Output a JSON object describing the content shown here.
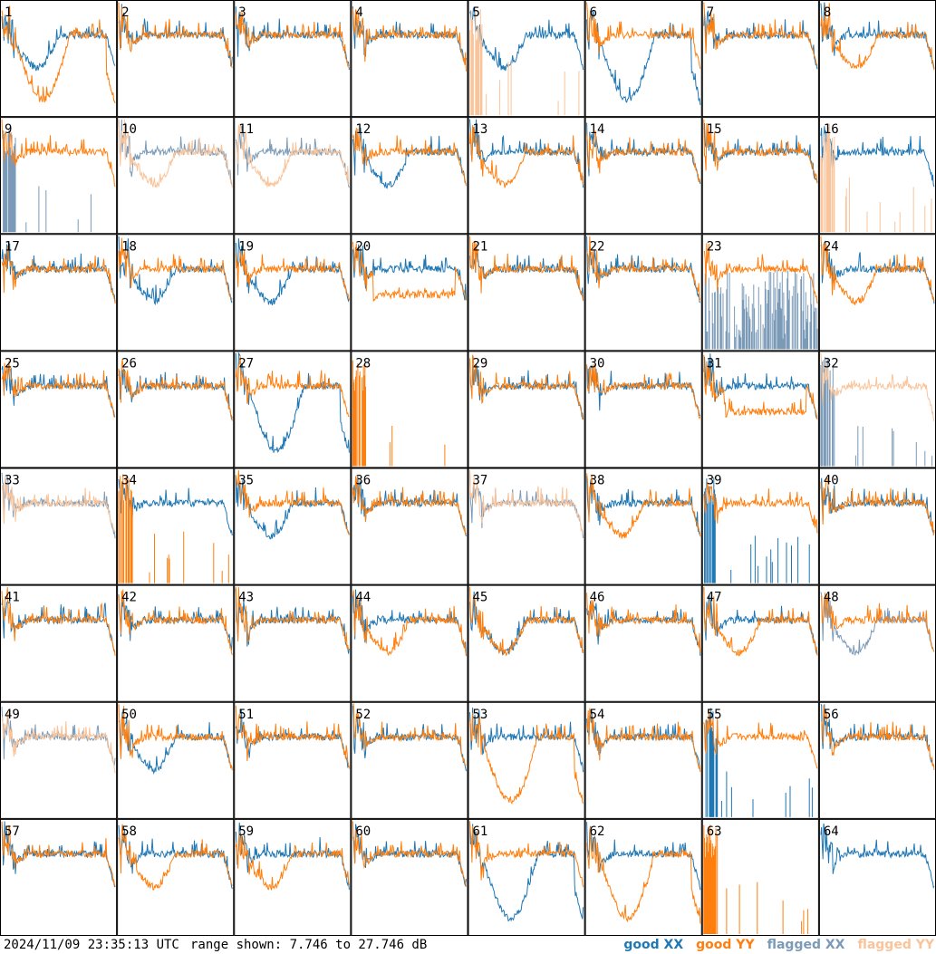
{
  "chart_data": {
    "type": "line",
    "layout": "grid of small multiples",
    "grid": {
      "rows": 8,
      "cols": 8
    },
    "tile_labels": [
      "1",
      "2",
      "3",
      "4",
      "5",
      "6",
      "7",
      "8",
      "9",
      "10",
      "11",
      "12",
      "13",
      "14",
      "15",
      "16",
      "17",
      "18",
      "19",
      "20",
      "21",
      "22",
      "23",
      "24",
      "25",
      "26",
      "27",
      "28",
      "29",
      "30",
      "31",
      "32",
      "33",
      "34",
      "35",
      "36",
      "37",
      "38",
      "39",
      "40",
      "41",
      "42",
      "43",
      "44",
      "45",
      "46",
      "47",
      "48",
      "49",
      "50",
      "51",
      "52",
      "53",
      "54",
      "55",
      "56",
      "57",
      "58",
      "59",
      "60",
      "61",
      "62",
      "63",
      "64"
    ],
    "y_range_db": [
      7.746,
      27.746
    ],
    "series_legend": [
      {
        "key": "good_xx",
        "name": "good XX",
        "color": "#1f77b4"
      },
      {
        "key": "good_yy",
        "name": "good YY",
        "color": "#ff7f0e"
      },
      {
        "key": "flagged_xx",
        "name": "flagged XX",
        "color": "#7a9ab8"
      },
      {
        "key": "flagged_yy",
        "name": "flagged YY",
        "color": "#f9c49a"
      }
    ],
    "tiles": {
      "1": {
        "xx": "dip",
        "yy": "deep",
        "xf": 0,
        "yf": 0
      },
      "5": {
        "xx": "dip",
        "yy": "spikes",
        "xf": 0,
        "yf": 1
      },
      "6": {
        "xx": "deep",
        "yy": "normal",
        "xf": 0,
        "yf": 0
      },
      "8": {
        "xx": "normal",
        "yy": "dip",
        "xf": 0,
        "yf": 0
      },
      "9": {
        "xx": "spikes",
        "yy": "normal",
        "xf": 1,
        "yf": 0
      },
      "10": {
        "xx": "normal",
        "yy": "dip",
        "xf": 1,
        "yf": 1
      },
      "11": {
        "xx": "normal",
        "yy": "dip",
        "xf": 1,
        "yf": 1
      },
      "12": {
        "xx": "dip",
        "yy": "normal",
        "xf": 0,
        "yf": 0
      },
      "13": {
        "xx": "normal",
        "yy": "dip",
        "xf": 0,
        "yf": 0
      },
      "16": {
        "xx": "normal",
        "yy": "spikes",
        "xf": 0,
        "yf": 1
      },
      "18": {
        "xx": "dip",
        "yy": "normal",
        "xf": 0,
        "yf": 0
      },
      "19": {
        "xx": "dip",
        "yy": "normal",
        "xf": 0,
        "yf": 0
      },
      "20": {
        "xx": "normal",
        "yy": "low",
        "xf": 0,
        "yf": 0
      },
      "23": {
        "xx": "noise",
        "yy": "normal",
        "xf": 1,
        "yf": 0
      },
      "24": {
        "xx": "normal",
        "yy": "dip",
        "xf": 0,
        "yf": 0
      },
      "27": {
        "xx": "deep",
        "yy": "normal",
        "xf": 0,
        "yf": 0
      },
      "28": {
        "xx": "none",
        "yy": "spikes",
        "xf": 0,
        "yf": 0
      },
      "31": {
        "xx": "normal",
        "yy": "low",
        "xf": 0,
        "yf": 0
      },
      "32": {
        "xx": "spikes",
        "yy": "normal",
        "xf": 1,
        "yf": 1
      },
      "33": {
        "xx": "normal",
        "yy": "normal",
        "xf": 1,
        "yf": 1
      },
      "34": {
        "xx": "normal",
        "yy": "spikes",
        "xf": 0,
        "yf": 0
      },
      "35": {
        "xx": "dip",
        "yy": "normal",
        "xf": 0,
        "yf": 0
      },
      "37": {
        "xx": "normal",
        "yy": "normal",
        "xf": 1,
        "yf": 1
      },
      "38": {
        "xx": "normal",
        "yy": "dip",
        "xf": 0,
        "yf": 0
      },
      "39": {
        "xx": "spikes",
        "yy": "normal",
        "xf": 0,
        "yf": 0
      },
      "44": {
        "xx": "normal",
        "yy": "dip",
        "xf": 0,
        "yf": 0
      },
      "45": {
        "xx": "dip",
        "yy": "dip",
        "xf": 0,
        "yf": 0
      },
      "47": {
        "xx": "normal",
        "yy": "dip",
        "xf": 0,
        "yf": 0
      },
      "48": {
        "xx": "dip",
        "yy": "normal",
        "xf": 1,
        "yf": 0
      },
      "49": {
        "xx": "normal",
        "yy": "normal",
        "xf": 1,
        "yf": 1
      },
      "50": {
        "xx": "dip",
        "yy": "normal",
        "xf": 0,
        "yf": 0
      },
      "53": {
        "xx": "normal",
        "yy": "deep",
        "xf": 0,
        "yf": 0
      },
      "55": {
        "xx": "spikes",
        "yy": "normal",
        "xf": 0,
        "yf": 0
      },
      "58": {
        "xx": "normal",
        "yy": "dip",
        "xf": 0,
        "yf": 0
      },
      "59": {
        "xx": "normal",
        "yy": "dip",
        "xf": 0,
        "yf": 0
      },
      "61": {
        "xx": "deep",
        "yy": "normal",
        "xf": 0,
        "yf": 0
      },
      "62": {
        "xx": "normal",
        "yy": "deep",
        "xf": 0,
        "yf": 0
      },
      "63": {
        "xx": "none",
        "yy": "spikes",
        "xf": 0,
        "yf": 0
      },
      "64": {
        "xx": "normal",
        "yy": "none",
        "xf": 0,
        "yf": 0
      }
    }
  },
  "footer": {
    "timestamp": "2024/11/09 23:35:13 UTC",
    "range_text": "range shown: 7.746 to 27.746 dB"
  }
}
